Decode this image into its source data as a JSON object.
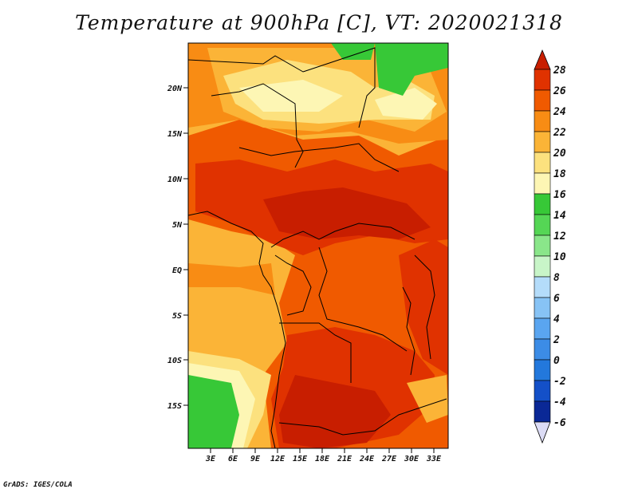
{
  "title": "Temperature at 900hPa [C], VT: 2020021318",
  "credit": "GrADS: IGES/COLA",
  "map": {
    "lat_ticks": [
      "20N",
      "15N",
      "10N",
      "5N",
      "EQ",
      "5S",
      "10S",
      "15S"
    ],
    "lon_ticks": [
      "3E",
      "6E",
      "9E",
      "12E",
      "15E",
      "18E",
      "21E",
      "24E",
      "27E",
      "30E",
      "33E"
    ],
    "fill_colors": {
      "t28": "#c81e00",
      "t26": "#e03200",
      "t24": "#f05a00",
      "t22": "#f88c14",
      "t20": "#fbb437",
      "t18": "#fce17e",
      "t16": "#fdf6b4",
      "t14": "#37c837"
    }
  },
  "colorbar": {
    "labels": [
      "28",
      "26",
      "24",
      "22",
      "20",
      "18",
      "16",
      "14",
      "12",
      "10",
      "8",
      "6",
      "4",
      "2",
      "0",
      "-2",
      "-4",
      "-6"
    ],
    "colors": [
      "#e03200",
      "#f05a00",
      "#f88c14",
      "#fbb437",
      "#fce17e",
      "#fdf6b4",
      "#37c837",
      "#55d655",
      "#8ae68a",
      "#c8f5c8",
      "#b4dcfa",
      "#87c3f5",
      "#5aa5f0",
      "#3c8ce6",
      "#2378dc",
      "#1450c8",
      "#0a2896",
      "#000a64"
    ],
    "top_cap": "#c81e00",
    "bottom_cap": "#dcdcf5"
  }
}
